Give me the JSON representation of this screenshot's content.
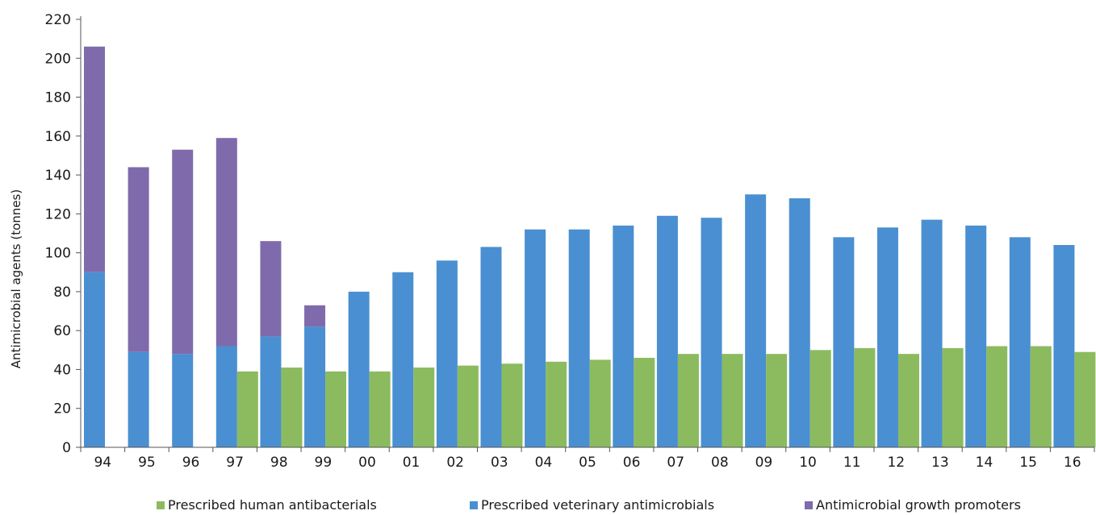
{
  "chart_data": {
    "type": "bar",
    "stacked_series": [
      "Prescribed veterinary antimicrobials",
      "Antimicrobial growth promoters"
    ],
    "categories": [
      "94",
      "95",
      "96",
      "97",
      "98",
      "99",
      "00",
      "01",
      "02",
      "03",
      "04",
      "05",
      "06",
      "07",
      "08",
      "09",
      "10",
      "11",
      "12",
      "13",
      "14",
      "15",
      "16"
    ],
    "series": [
      {
        "name": "Prescribed human antibacterials",
        "color": "#8cbb5f",
        "values": [
          null,
          null,
          null,
          39,
          41,
          39,
          39,
          41,
          42,
          43,
          44,
          45,
          46,
          48,
          48,
          48,
          50,
          51,
          48,
          51,
          52,
          52,
          49
        ]
      },
      {
        "name": "Prescribed veterinary antimicrobials",
        "color": "#4a8fd1",
        "values": [
          90,
          49,
          48,
          52,
          57,
          62,
          80,
          90,
          96,
          103,
          112,
          112,
          114,
          119,
          118,
          130,
          128,
          108,
          113,
          117,
          114,
          108,
          104
        ]
      },
      {
        "name": "Antimicrobial growth promoters",
        "color": "#7f6bab",
        "values": [
          116,
          95,
          105,
          107,
          49,
          11,
          null,
          null,
          null,
          null,
          null,
          null,
          null,
          null,
          null,
          null,
          null,
          null,
          null,
          null,
          null,
          null,
          null
        ]
      }
    ],
    "ylabel": "Antimicrobial agents (tonnes)",
    "xlabel": "",
    "title": "",
    "ylim": [
      0,
      220
    ],
    "yticks": [
      0,
      20,
      40,
      60,
      80,
      100,
      120,
      140,
      160,
      180,
      200,
      220
    ],
    "grid": false,
    "legend_position": "bottom"
  }
}
